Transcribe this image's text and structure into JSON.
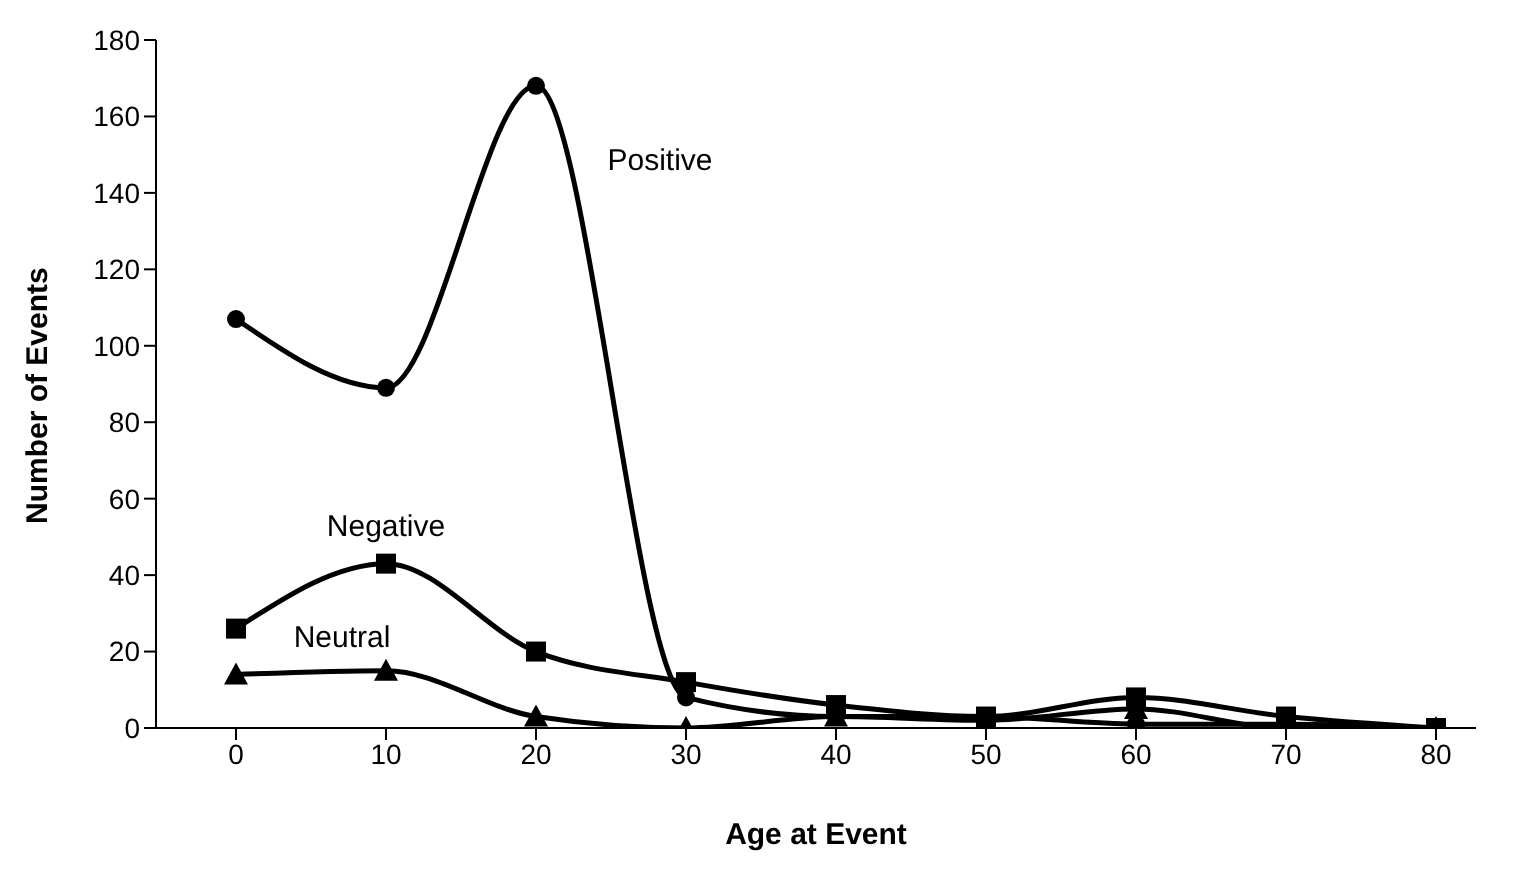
{
  "chart_data": {
    "type": "line",
    "xlabel": "Age at Event",
    "ylabel": "Number of Events",
    "categories": [
      "0",
      "10",
      "20",
      "30",
      "40",
      "50",
      "60",
      "70",
      "80"
    ],
    "series": [
      {
        "name": "Positive",
        "color": "#000000",
        "marker": "circle",
        "values": [
          107,
          89,
          168,
          8,
          3,
          3,
          1,
          1,
          0
        ]
      },
      {
        "name": "Negative",
        "color": "#000000",
        "marker": "square",
        "values": [
          26,
          43,
          20,
          12,
          6,
          3,
          8,
          3,
          0
        ]
      },
      {
        "name": "Neutral",
        "color": "#000000",
        "marker": "triangle",
        "values": [
          14,
          15,
          3,
          0,
          3,
          2,
          5,
          0,
          0
        ]
      }
    ],
    "ylim": [
      0,
      180
    ],
    "yticks": [
      0,
      20,
      40,
      60,
      80,
      100,
      120,
      140,
      160,
      180
    ],
    "grid": false,
    "legend": false,
    "line_style": "solid"
  }
}
